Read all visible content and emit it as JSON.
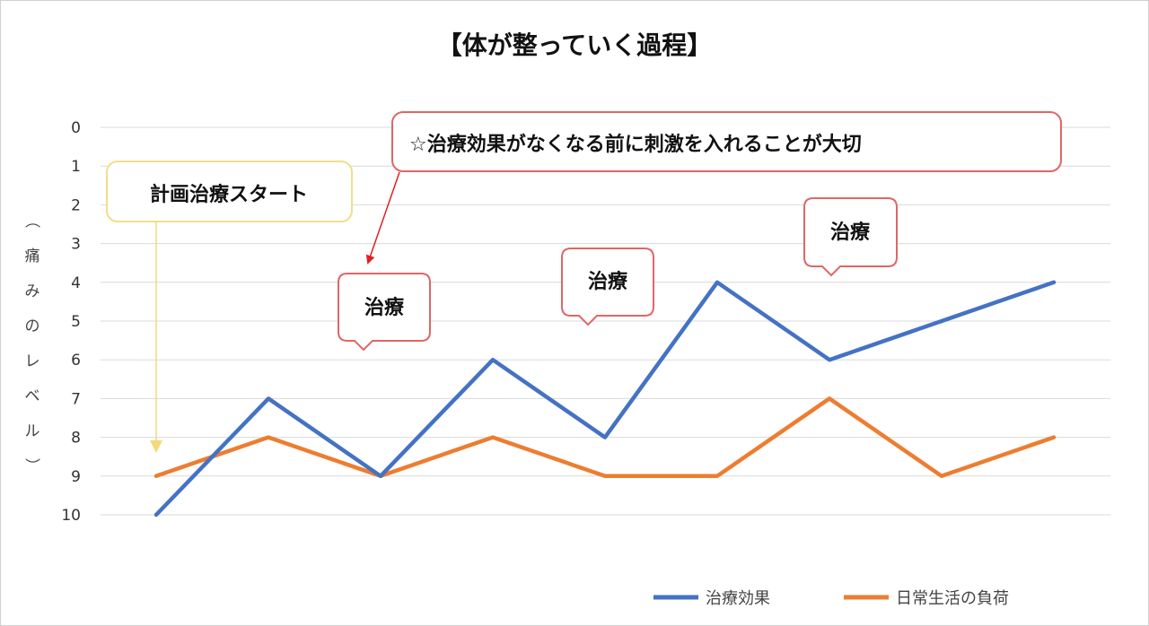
{
  "chart_data": {
    "type": "line",
    "title": "【体が整っていく過程】",
    "ylabel": "（痛みのレベル）",
    "y_inverted": true,
    "ylim": [
      0,
      10
    ],
    "y_ticks": [
      0,
      1,
      2,
      3,
      4,
      5,
      6,
      7,
      8,
      9,
      10
    ],
    "grid": true,
    "legend_position": "bottom-right",
    "x": [
      1,
      2,
      3,
      4,
      5,
      6,
      7,
      8,
      9
    ],
    "series": [
      {
        "name": "治療効果",
        "color": "#4472C4",
        "values": [
          10,
          7,
          9,
          6,
          8,
          4,
          6,
          5,
          4
        ]
      },
      {
        "name": "日常生活の負荷",
        "color": "#ED7D31",
        "values": [
          9,
          8,
          9,
          8,
          9,
          9,
          7,
          9,
          8
        ]
      }
    ],
    "annotations": [
      {
        "id": "start",
        "text": "計画治療スタート",
        "style": "yellow"
      },
      {
        "id": "important",
        "text": "☆治療効果がなくなる前に刺激を入れることが大切",
        "style": "red"
      },
      {
        "id": "t1",
        "text": "治療",
        "style": "red"
      },
      {
        "id": "t2",
        "text": "治療",
        "style": "red"
      },
      {
        "id": "t3",
        "text": "治療",
        "style": "red"
      }
    ]
  },
  "colors": {
    "grid": "#D9D9D9",
    "callout_red_border": "#E06666",
    "callout_yellow_border": "#F2DE8A",
    "arrow_red": "#E02020",
    "arrow_yellow": "#F5D87A"
  }
}
